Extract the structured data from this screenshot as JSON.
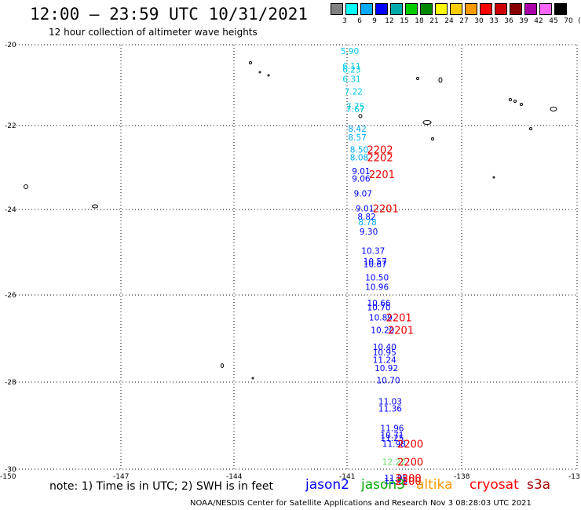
{
  "title": "12:00 – 23:59 UTC 10/31/2021",
  "subtitle": "12 hour collection of altimeter wave heights",
  "legend": {
    "labels": [
      "3",
      "6",
      "9",
      "12",
      "15",
      "18",
      "21",
      "24",
      "27",
      "30",
      "33",
      "36",
      "39",
      "42",
      "45",
      "70",
      "(ft)"
    ],
    "colors": [
      "#808080",
      "#00ffff",
      "#00aaff",
      "#0000ff",
      "#00aaaa",
      "#00cc00",
      "#008800",
      "#ffff00",
      "#ffcc00",
      "#ff9900",
      "#ff0000",
      "#cc0000",
      "#880000",
      "#aa00aa",
      "#ff66ff",
      "#000000"
    ]
  },
  "axes": {
    "lat_labels": [
      "-20",
      "-22",
      "-24",
      "-26",
      "-28",
      "-30"
    ],
    "lon_labels": [
      "-150",
      "-147",
      "-144",
      "-141",
      "-138",
      "-13"
    ]
  },
  "wave_heights": [
    {
      "text": "5.90",
      "color": "#00c8e6",
      "lon": -141.25,
      "lat": -20.15
    },
    {
      "text": "6.11",
      "color": "#00c8e6",
      "lon": -141.2,
      "lat": -20.5
    },
    {
      "text": "6.23",
      "color": "#00c8e6",
      "lon": -141.2,
      "lat": -20.58
    },
    {
      "text": "6.31",
      "color": "#00c8e6",
      "lon": -141.2,
      "lat": -20.8
    },
    {
      "text": "7.22",
      "color": "#00c8e6",
      "lon": -141.15,
      "lat": -21.1
    },
    {
      "text": "7.75",
      "color": "#00c8e6",
      "lon": -141.1,
      "lat": -21.45
    },
    {
      "text": "7.67",
      "color": "#00c8e6",
      "lon": -141.1,
      "lat": -21.52
    },
    {
      "text": "8.42",
      "color": "#00aaff",
      "lon": -141.05,
      "lat": -21.98
    },
    {
      "text": "8.57",
      "color": "#00aaff",
      "lon": -141.05,
      "lat": -22.18
    },
    {
      "text": "8.50",
      "color": "#00aaff",
      "lon": -141.0,
      "lat": -22.47
    },
    {
      "text": "8.08",
      "color": "#00aaff",
      "lon": -141.0,
      "lat": -22.65
    },
    {
      "text": "9.01",
      "color": "#0000ff",
      "lon": -140.95,
      "lat": -22.98
    },
    {
      "text": "9.06",
      "color": "#0000ff",
      "lon": -140.95,
      "lat": -23.15
    },
    {
      "text": "9.07",
      "color": "#0000ff",
      "lon": -140.9,
      "lat": -23.5
    },
    {
      "text": "9.01",
      "color": "#0000ff",
      "lon": -140.85,
      "lat": -23.85
    },
    {
      "text": "8.82",
      "color": "#0000ff",
      "lon": -140.8,
      "lat": -24.05
    },
    {
      "text": "8.78",
      "color": "#00aaff",
      "lon": -140.78,
      "lat": -24.18
    },
    {
      "text": "9.30",
      "color": "#0000ff",
      "lon": -140.75,
      "lat": -24.4
    },
    {
      "text": "10.37",
      "color": "#0000ff",
      "lon": -140.7,
      "lat": -24.85
    },
    {
      "text": "10.57",
      "color": "#0000ff",
      "lon": -140.65,
      "lat": -25.1
    },
    {
      "text": "10.67",
      "color": "#0000ff",
      "lon": -140.65,
      "lat": -25.17
    },
    {
      "text": "10.50",
      "color": "#0000ff",
      "lon": -140.6,
      "lat": -25.48
    },
    {
      "text": "10.96",
      "color": "#0000ff",
      "lon": -140.6,
      "lat": -25.7
    },
    {
      "text": "10.66",
      "color": "#0000ff",
      "lon": -140.55,
      "lat": -26.08
    },
    {
      "text": "10.70",
      "color": "#0000ff",
      "lon": -140.55,
      "lat": -26.18
    },
    {
      "text": "10.89",
      "color": "#0000ff",
      "lon": -140.5,
      "lat": -26.42
    },
    {
      "text": "10.20",
      "color": "#0000ff",
      "lon": -140.45,
      "lat": -26.72
    },
    {
      "text": "10.40",
      "color": "#0000ff",
      "lon": -140.4,
      "lat": -27.12
    },
    {
      "text": "10.95",
      "color": "#0000ff",
      "lon": -140.4,
      "lat": -27.25
    },
    {
      "text": "11.24",
      "color": "#0000ff",
      "lon": -140.4,
      "lat": -27.42
    },
    {
      "text": "10.92",
      "color": "#0000ff",
      "lon": -140.35,
      "lat": -27.62
    },
    {
      "text": "10.70",
      "color": "#0000ff",
      "lon": -140.3,
      "lat": -27.9
    },
    {
      "text": "11.03",
      "color": "#0000ff",
      "lon": -140.25,
      "lat": -28.4
    },
    {
      "text": "11.36",
      "color": "#0000ff",
      "lon": -140.25,
      "lat": -28.57
    },
    {
      "text": "11.96",
      "color": "#0000ff",
      "lon": -140.2,
      "lat": -29.03
    },
    {
      "text": "10.71",
      "color": "#0000ff",
      "lon": -140.2,
      "lat": -29.2
    },
    {
      "text": "11.25",
      "color": "#0000ff",
      "lon": -140.2,
      "lat": -29.26
    },
    {
      "text": "11.98",
      "color": "#0000ff",
      "lon": -140.15,
      "lat": -29.4
    },
    {
      "text": "12.22",
      "color": "#66dd66",
      "lon": -140.15,
      "lat": -29.82
    },
    {
      "text": "11.95",
      "color": "#0000ff",
      "lon": -140.1,
      "lat": -30.2
    },
    {
      "text": "11.75",
      "color": "#0000ff",
      "lon": -140.1,
      "lat": -30.28
    }
  ],
  "time_labels": [
    {
      "text": "2202",
      "lon": -140.55,
      "lat": -22.47
    },
    {
      "text": "2202",
      "lon": -140.55,
      "lat": -22.65
    },
    {
      "text": "2201",
      "lon": -140.5,
      "lat": -23.05
    },
    {
      "text": "2201",
      "lon": -140.4,
      "lat": -23.85
    },
    {
      "text": "2201",
      "lon": -140.05,
      "lat": -26.42
    },
    {
      "text": "2201",
      "lon": -140.0,
      "lat": -26.72
    },
    {
      "text": "2200",
      "lon": -139.75,
      "lat": -29.4
    },
    {
      "text": "2200",
      "lon": -139.75,
      "lat": -29.82
    },
    {
      "text": "2200",
      "lon": -139.8,
      "lat": -30.2
    },
    {
      "text": "2200",
      "lon": -139.8,
      "lat": -30.28
    }
  ],
  "note": "note:  1) Time is in UTC; 2) SWH is in feet",
  "satellites": [
    {
      "name": "jason2",
      "color": "#0000ff"
    },
    {
      "name": "jason3",
      "color": "#00aa00"
    },
    {
      "name": "altika",
      "color": "#ff9900"
    },
    {
      "name": "cryosat",
      "color": "#ff0000"
    },
    {
      "name": "s3a",
      "color": "#aa0000"
    }
  ],
  "footer": "NOAA/NESDIS Center for Satellite Applications and Research    Nov  3 08:28:03 UTC 2021"
}
